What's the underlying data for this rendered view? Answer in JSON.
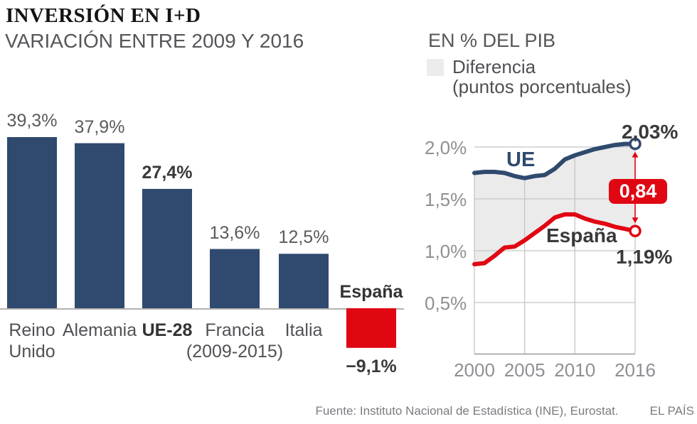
{
  "header": {
    "title": "INVERSIÓN EN I+D"
  },
  "footer": {
    "source": "Fuente: Instituto Nacional de Estadística (INE), Eurostat.",
    "brand": "EL PAÍS"
  },
  "colors": {
    "navy": "#2f4a6e",
    "red": "#e00713",
    "shading": "#ebebeb",
    "grid": "#c5c5c5",
    "axis": "#9b9b9b",
    "baseline": "#b3b3b3"
  },
  "chart_data": [
    {
      "type": "bar",
      "title": "VARIACIÓN ENTRE 2009 Y 2016",
      "unit": "%",
      "categories": [
        "Reino Unido",
        "Alemania",
        "UE-28",
        "Francia (2009-2015)",
        "Italia",
        "España"
      ],
      "values": [
        39.3,
        37.9,
        27.4,
        13.6,
        12.5,
        -9.1
      ],
      "bars": [
        {
          "label_lines": [
            "Reino",
            "Unido"
          ],
          "value": 39.3,
          "value_label": "39,3%",
          "emphasis": false,
          "color": "navy"
        },
        {
          "label_lines": [
            "Alemania"
          ],
          "value": 37.9,
          "value_label": "37,9%",
          "emphasis": false,
          "color": "navy"
        },
        {
          "label_lines": [
            "UE-28"
          ],
          "value": 27.4,
          "value_label": "27,4%",
          "emphasis": true,
          "color": "navy"
        },
        {
          "label_lines": [
            "Francia",
            "(2009-2015)"
          ],
          "value": 13.6,
          "value_label": "13,6%",
          "emphasis": false,
          "color": "navy"
        },
        {
          "label_lines": [
            "Italia"
          ],
          "value": 12.5,
          "value_label": "12,5%",
          "emphasis": false,
          "color": "navy"
        },
        {
          "label_lines": [
            "España"
          ],
          "value": -9.1,
          "value_label": "−9,1%",
          "emphasis": true,
          "color": "red"
        }
      ]
    },
    {
      "type": "line",
      "title": "EN % DEL PIB",
      "legend": {
        "line1": "Diferencia",
        "line2": "(puntos porcentuales)"
      },
      "grid": true,
      "ylim": [
        0,
        2.1
      ],
      "x": [
        2000,
        2001,
        2002,
        2003,
        2004,
        2005,
        2006,
        2007,
        2008,
        2009,
        2010,
        2011,
        2012,
        2013,
        2014,
        2015,
        2016
      ],
      "series": [
        {
          "name": "UE",
          "color": "navy",
          "end_label": "2,03%",
          "values": [
            1.75,
            1.76,
            1.76,
            1.75,
            1.72,
            1.7,
            1.72,
            1.73,
            1.79,
            1.88,
            1.92,
            1.95,
            1.98,
            2.0,
            2.02,
            2.03,
            2.03
          ]
        },
        {
          "name": "España",
          "color": "red",
          "end_label": "1,19%",
          "values": [
            0.87,
            0.88,
            0.95,
            1.03,
            1.04,
            1.1,
            1.17,
            1.24,
            1.32,
            1.35,
            1.35,
            1.31,
            1.28,
            1.26,
            1.23,
            1.21,
            1.19
          ]
        }
      ],
      "difference_label": "0,84",
      "yticks": [
        {
          "value": 2.0,
          "label": "2,0%"
        },
        {
          "value": 1.5,
          "label": "1,5%"
        },
        {
          "value": 1.0,
          "label": "1,0%"
        },
        {
          "value": 0.5,
          "label": "0,5%"
        }
      ],
      "xticks": [
        {
          "value": 2000,
          "label": "2000"
        },
        {
          "value": 2005,
          "label": "2005"
        },
        {
          "value": 2010,
          "label": "2010"
        },
        {
          "value": 2016,
          "label": "2016"
        }
      ]
    }
  ]
}
